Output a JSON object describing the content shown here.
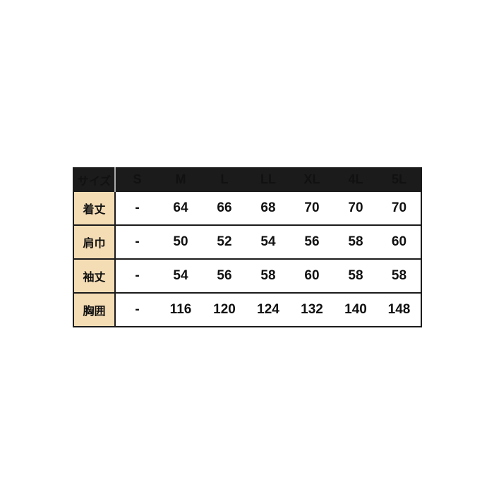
{
  "table": {
    "header": {
      "size_label": "サイズ",
      "columns": [
        "S",
        "M",
        "L",
        "LL",
        "XL",
        "4L",
        "5L"
      ]
    },
    "rows": [
      {
        "label": "着丈",
        "values": [
          "-",
          "64",
          "66",
          "68",
          "70",
          "70",
          "70"
        ]
      },
      {
        "label": "肩巾",
        "values": [
          "-",
          "50",
          "52",
          "54",
          "56",
          "58",
          "60"
        ]
      },
      {
        "label": "袖丈",
        "values": [
          "-",
          "54",
          "56",
          "58",
          "60",
          "58",
          "58"
        ]
      },
      {
        "label": "胸囲",
        "values": [
          "-",
          "116",
          "120",
          "124",
          "132",
          "140",
          "148"
        ]
      }
    ],
    "colors": {
      "header_bg": "#1b1b1b",
      "header_text": "#ffffff",
      "label_bg": "#f4dcb4",
      "border": "#1b1b1b",
      "header_divider": "#aaaaaa"
    }
  }
}
